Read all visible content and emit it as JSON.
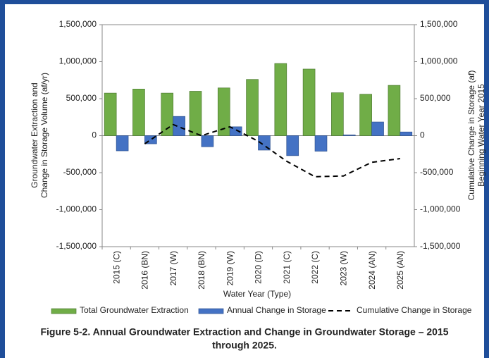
{
  "chart_data": {
    "type": "bar",
    "title": [
      "Figure 5-2. Annual Groundwater Extraction and Change in Groundwater Storage – 2015",
      "through 2025."
    ],
    "x_label": "Water Year (Type)",
    "y_label": [
      "Groundwater Extraction and",
      "Change in Storage Volume (af/yr)"
    ],
    "y2_label": [
      "Cumulative Change in Storage (af)",
      "Beginning Water Year 2015"
    ],
    "categories": [
      "2015 (C)",
      "2016 (BN)",
      "2017 (W)",
      "2018 (BN)",
      "2019 (W)",
      "2020 (D)",
      "2021 (C)",
      "2022 (C)",
      "2023 (W)",
      "2024 (AN)",
      "2025 (AN)"
    ],
    "series": [
      {
        "name": "Total Groundwater Extraction",
        "type": "bar",
        "color": "#70ad47",
        "values": [
          575000,
          630000,
          575000,
          600000,
          645000,
          760000,
          975000,
          900000,
          580000,
          560000,
          680000
        ]
      },
      {
        "name": "Annual Change in Storage",
        "type": "bar",
        "color": "#4472c4",
        "values": [
          -205000,
          -110000,
          260000,
          -150000,
          120000,
          -195000,
          -270000,
          -210000,
          10000,
          185000,
          50000
        ]
      },
      {
        "name": "Cumulative Change in Storage",
        "type": "line",
        "axis": "y2",
        "color": "#000000",
        "values": [
          null,
          -110000,
          150000,
          0,
          120000,
          -75000,
          -345000,
          -555000,
          -545000,
          -360000,
          -310000
        ]
      }
    ],
    "ylim": [
      -1500000,
      1500000
    ],
    "yticks": [
      {
        "value": -1500000,
        "label": "-1,500,000"
      },
      {
        "value": -1000000,
        "label": "-1,000,000"
      },
      {
        "value": -500000,
        "label": "-500,000"
      },
      0,
      {
        "value": 500000,
        "label": "500,000"
      },
      {
        "value": 1000000,
        "label": "1,000,000"
      },
      {
        "value": 1500000,
        "label": "1,500,000"
      }
    ],
    "y2lim": [
      -1500000,
      1500000
    ],
    "y2ticks": [
      {
        "value": -1500000,
        "label": "-1,500,000"
      },
      {
        "value": -1000000,
        "label": "-1,000,000"
      },
      {
        "value": -500000,
        "label": "-500,000"
      },
      0,
      {
        "value": 500000,
        "label": "500,000"
      },
      {
        "value": 1000000,
        "label": "1,000,000"
      },
      {
        "value": 1500000,
        "label": "1,500,000"
      }
    ],
    "grid": false,
    "legend": "bottom"
  }
}
